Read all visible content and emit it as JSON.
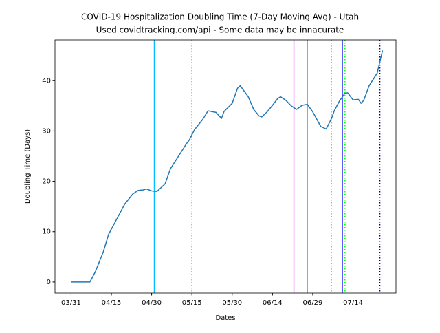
{
  "chart_data": {
    "type": "line",
    "title": "COVID-19 Hospitalization Doubling Time (7-Day Moving Avg) - Utah",
    "subtitle": "Used covidtracking.com/api - Some data may be innacurate",
    "x_label": "Dates",
    "y_label": "Doubling Time (Days)",
    "x": [
      "03/31",
      "04/07",
      "04/09",
      "04/12",
      "04/14",
      "04/17",
      "04/20",
      "04/23",
      "04/25",
      "04/27",
      "04/28",
      "04/30",
      "05/02",
      "05/05",
      "05/07",
      "05/10",
      "05/13",
      "05/14",
      "05/16",
      "05/19",
      "05/21",
      "05/24",
      "05/26",
      "05/27",
      "05/30",
      "06/01",
      "06/02",
      "06/05",
      "06/07",
      "06/09",
      "06/10",
      "06/12",
      "06/14",
      "06/16",
      "06/17",
      "06/19",
      "06/21",
      "06/23",
      "06/25",
      "06/27",
      "06/29",
      "07/02",
      "07/04",
      "07/06",
      "07/07",
      "07/09",
      "07/11",
      "07/12",
      "07/14",
      "07/16",
      "07/17",
      "07/18",
      "07/20",
      "07/23",
      "07/25"
    ],
    "series": [
      {
        "color": "#1f77b4",
        "values": [
          0,
          0,
          2,
          6,
          9.5,
          12.5,
          15.5,
          17.5,
          18.2,
          18.3,
          18.5,
          18.1,
          18,
          19.5,
          22.5,
          25,
          27.5,
          28.2,
          30.3,
          32.3,
          34,
          33.7,
          32.5,
          33.9,
          35.5,
          38.5,
          39,
          36.8,
          34.3,
          33,
          32.8,
          33.8,
          35.1,
          36.5,
          36.8,
          36.1,
          35,
          34.3,
          35.1,
          35.3,
          33.8,
          30.9,
          30.4,
          32.5,
          34,
          36,
          37.5,
          37.6,
          36.2,
          36.3,
          35.5,
          36.1,
          39,
          41.5,
          46
        ]
      }
    ],
    "vlines": [
      {
        "x": "05/01",
        "color": "#00bfff",
        "style": "solid"
      },
      {
        "x": "05/15",
        "color": "#00bfff",
        "style": "dotted"
      },
      {
        "x": "06/22",
        "color": "#ee82ee",
        "style": "solid"
      },
      {
        "x": "06/27",
        "color": "#00ff00",
        "style": "solid"
      },
      {
        "x": "07/06",
        "color": "#ee82ee",
        "style": "dotted"
      },
      {
        "x": "07/10",
        "color": "#0000ff",
        "style": "solid"
      },
      {
        "x": "07/11",
        "color": "#00ff00",
        "style": "dotted"
      },
      {
        "x": "07/24",
        "color": "#000080",
        "style": "dotted"
      }
    ],
    "xlim": [
      "03/25",
      "07/30"
    ],
    "xticks": [
      "03/31",
      "04/15",
      "04/30",
      "05/15",
      "05/30",
      "06/14",
      "06/29",
      "07/14"
    ],
    "ylim": [
      -2.2,
      48.1
    ],
    "yticks": [
      0,
      10,
      20,
      30,
      40
    ]
  }
}
